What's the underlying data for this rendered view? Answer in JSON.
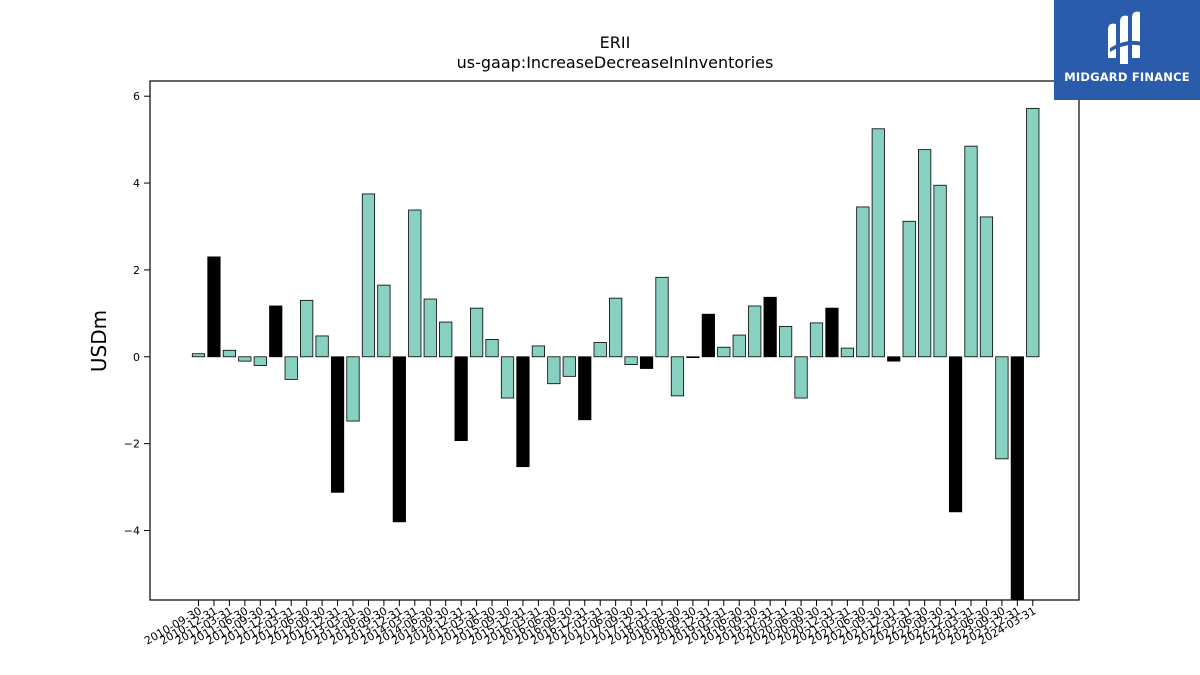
{
  "chart_data": {
    "type": "bar",
    "title": "ERII",
    "subtitle": "us-gaap:IncreaseDecreaseInInventories",
    "ylabel": "USDm",
    "xlabel": "",
    "ylim": [
      -5.6,
      6.35
    ],
    "yticks": [
      -4,
      -2,
      0,
      2,
      4,
      6
    ],
    "grid": false,
    "colors": {
      "default": "#88d1c1",
      "highlight": "#000000",
      "edge": "#000000"
    },
    "categories": [
      "2010-09-30",
      "2010-12-31",
      "2011-03-31",
      "2011-06-30",
      "2011-09-30",
      "2011-12-31",
      "2012-03-31",
      "2012-06-30",
      "2012-09-30",
      "2012-12-31",
      "2013-03-31",
      "2013-06-30",
      "2013-09-30",
      "2013-12-31",
      "2014-03-31",
      "2014-06-30",
      "2014-09-30",
      "2014-12-31",
      "2015-03-31",
      "2015-06-30",
      "2015-09-30",
      "2015-12-31",
      "2016-03-31",
      "2016-06-30",
      "2016-09-30",
      "2016-12-31",
      "2017-03-31",
      "2017-06-30",
      "2017-09-30",
      "2017-12-31",
      "2018-03-31",
      "2018-06-30",
      "2018-09-30",
      "2018-12-31",
      "2019-03-31",
      "2019-06-30",
      "2019-09-30",
      "2019-12-31",
      "2020-03-31",
      "2020-06-30",
      "2020-09-30",
      "2020-12-31",
      "2021-03-31",
      "2021-06-30",
      "2021-09-30",
      "2021-12-31",
      "2022-03-31",
      "2022-06-30",
      "2022-09-30",
      "2022-12-31",
      "2023-03-31",
      "2023-06-30",
      "2023-09-30",
      "2023-12-31",
      "2024-03-31"
    ],
    "values": [
      0.07,
      2.3,
      0.15,
      -0.1,
      -0.2,
      1.17,
      -0.52,
      1.3,
      0.48,
      -3.12,
      -1.48,
      3.75,
      1.65,
      -3.8,
      3.38,
      1.33,
      0.8,
      -1.93,
      1.12,
      0.4,
      -0.95,
      -2.53,
      0.25,
      -0.62,
      -0.45,
      -1.45,
      0.33,
      1.35,
      -0.18,
      -0.27,
      1.83,
      -0.9,
      0.0,
      0.98,
      0.22,
      0.5,
      1.17,
      1.37,
      0.7,
      -0.95,
      0.78,
      1.12,
      0.2,
      3.45,
      5.25,
      -0.1,
      3.12,
      4.77,
      3.95,
      -3.57,
      4.85,
      3.22,
      -2.35,
      -5.6,
      5.72
    ],
    "highlight": [
      false,
      true,
      false,
      false,
      false,
      true,
      false,
      false,
      false,
      true,
      false,
      false,
      false,
      true,
      false,
      false,
      false,
      true,
      false,
      false,
      false,
      true,
      false,
      false,
      false,
      true,
      false,
      false,
      false,
      true,
      false,
      false,
      false,
      true,
      false,
      false,
      false,
      true,
      false,
      false,
      false,
      true,
      false,
      false,
      false,
      true,
      false,
      false,
      false,
      true,
      false,
      false,
      false,
      true,
      false
    ]
  },
  "logo": {
    "text": "MIDGARD FINANCE",
    "icon": "midgard-logo-icon",
    "background": "#2b5cac"
  }
}
